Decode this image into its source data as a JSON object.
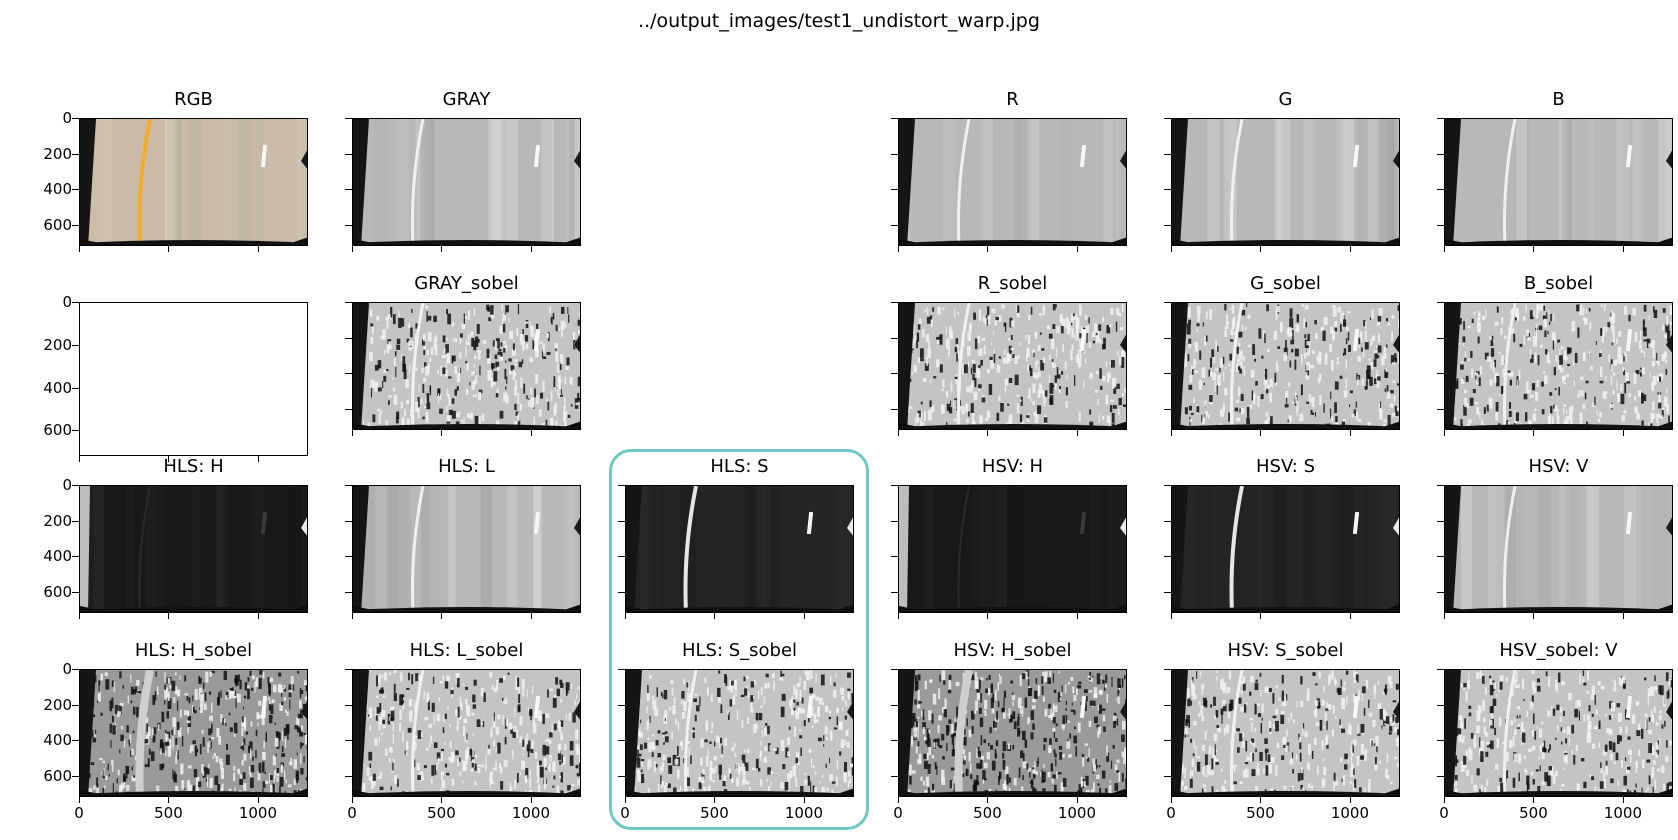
{
  "figure": {
    "suptitle": "../output_images/test1_undistort_warp.jpg",
    "yticks": [
      "0",
      "200",
      "400",
      "600"
    ],
    "xticks": [
      "0",
      "500",
      "1000"
    ],
    "highlight_color": "#6ec9c2"
  },
  "panels": [
    {
      "title": "RGB",
      "variant": "rgb",
      "y_labels": true,
      "x_labels": false
    },
    {
      "title": "GRAY",
      "variant": "gray",
      "y_labels": false,
      "x_labels": false
    },
    {
      "title": "R",
      "variant": "gray",
      "y_labels": false,
      "x_labels": false
    },
    {
      "title": "G",
      "variant": "gray",
      "y_labels": false,
      "x_labels": false
    },
    {
      "title": "B",
      "variant": "gray",
      "y_labels": false,
      "x_labels": false
    },
    {
      "title": "",
      "variant": "empty",
      "y_labels": true,
      "x_labels": false
    },
    {
      "title": "GRAY_sobel",
      "variant": "sobel",
      "y_labels": false,
      "x_labels": false
    },
    {
      "title": "R_sobel",
      "variant": "sobel",
      "y_labels": false,
      "x_labels": false
    },
    {
      "title": "G_sobel",
      "variant": "sobel",
      "y_labels": false,
      "x_labels": false
    },
    {
      "title": "B_sobel",
      "variant": "sobel",
      "y_labels": false,
      "x_labels": false
    },
    {
      "title": "HLS: H",
      "variant": "dark",
      "y_labels": true,
      "x_labels": false
    },
    {
      "title": "HLS: L",
      "variant": "gray",
      "y_labels": false,
      "x_labels": false
    },
    {
      "title": "HLS: S",
      "variant": "sat",
      "y_labels": false,
      "x_labels": false
    },
    {
      "title": "HSV: H",
      "variant": "dark",
      "y_labels": false,
      "x_labels": false
    },
    {
      "title": "HSV: S",
      "variant": "sat",
      "y_labels": false,
      "x_labels": false
    },
    {
      "title": "HSV: V",
      "variant": "gray",
      "y_labels": false,
      "x_labels": false
    },
    {
      "title": "HLS: H_sobel",
      "variant": "sobel-dark",
      "y_labels": true,
      "x_labels": true
    },
    {
      "title": "HLS: L_sobel",
      "variant": "sobel",
      "y_labels": false,
      "x_labels": true
    },
    {
      "title": "HLS: S_sobel",
      "variant": "sobel",
      "y_labels": false,
      "x_labels": true
    },
    {
      "title": "HSV: H_sobel",
      "variant": "sobel-dark",
      "y_labels": false,
      "x_labels": true
    },
    {
      "title": "HSV: S_sobel",
      "variant": "sobel",
      "y_labels": false,
      "x_labels": true
    },
    {
      "title": "HSV_sobel: V",
      "variant": "sobel",
      "y_labels": false,
      "x_labels": true
    }
  ]
}
